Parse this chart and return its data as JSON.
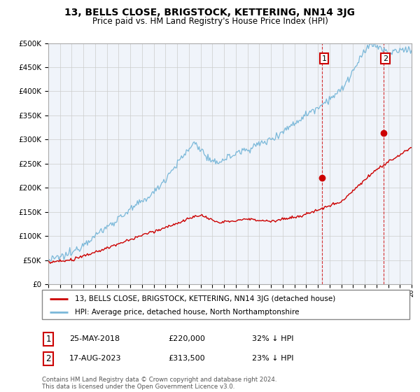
{
  "title": "13, BELLS CLOSE, BRIGSTOCK, KETTERING, NN14 3JG",
  "subtitle": "Price paid vs. HM Land Registry's House Price Index (HPI)",
  "legend_line1": "13, BELLS CLOSE, BRIGSTOCK, KETTERING, NN14 3JG (detached house)",
  "legend_line2": "HPI: Average price, detached house, North Northamptonshire",
  "sale1_date": "25-MAY-2018",
  "sale1_price": 220000,
  "sale1_label": "32% ↓ HPI",
  "sale1_year": 2018.38,
  "sale2_date": "17-AUG-2023",
  "sale2_price": 313500,
  "sale2_label": "23% ↓ HPI",
  "sale2_year": 2023.62,
  "footer": "Contains HM Land Registry data © Crown copyright and database right 2024.\nThis data is licensed under the Open Government Licence v3.0.",
  "hpi_color": "#7ab8d9",
  "price_color": "#cc0000",
  "marker_color": "#cc0000",
  "dashed_color": "#cc0000",
  "ylim": [
    0,
    500000
  ],
  "xlim_start": 1995,
  "xlim_end": 2026,
  "bg_color": "#f0f4fa"
}
